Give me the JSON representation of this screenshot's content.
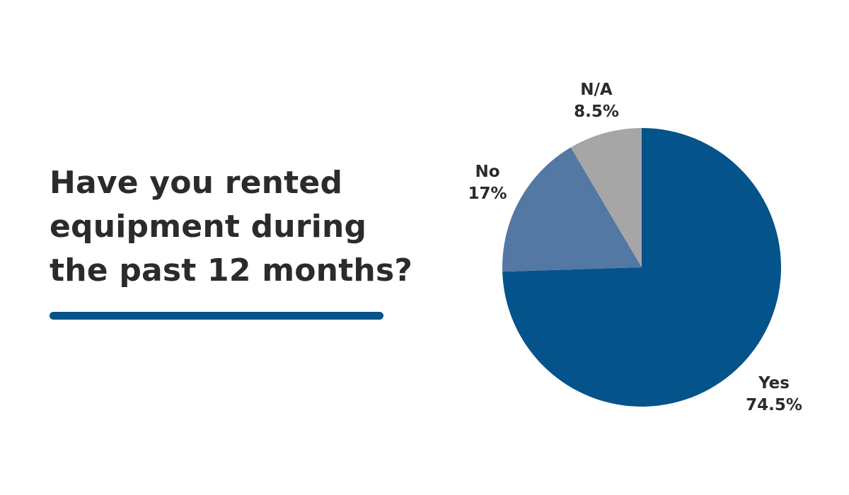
{
  "question_lines": [
    "Have you rented",
    "equipment during",
    "the past 12 months?"
  ],
  "colors": {
    "accent": "#04538a",
    "text": "#2b2b2b"
  },
  "chart_data": {
    "type": "pie",
    "categories": [
      "Yes",
      "No",
      "N/A"
    ],
    "values": [
      74.5,
      17,
      8.5
    ],
    "value_labels": [
      "74.5%",
      "17%",
      "8.5%"
    ],
    "colors": [
      "#04538a",
      "#5278a3",
      "#a6a6a6"
    ],
    "start": "12 o'clock",
    "direction": "clockwise"
  }
}
